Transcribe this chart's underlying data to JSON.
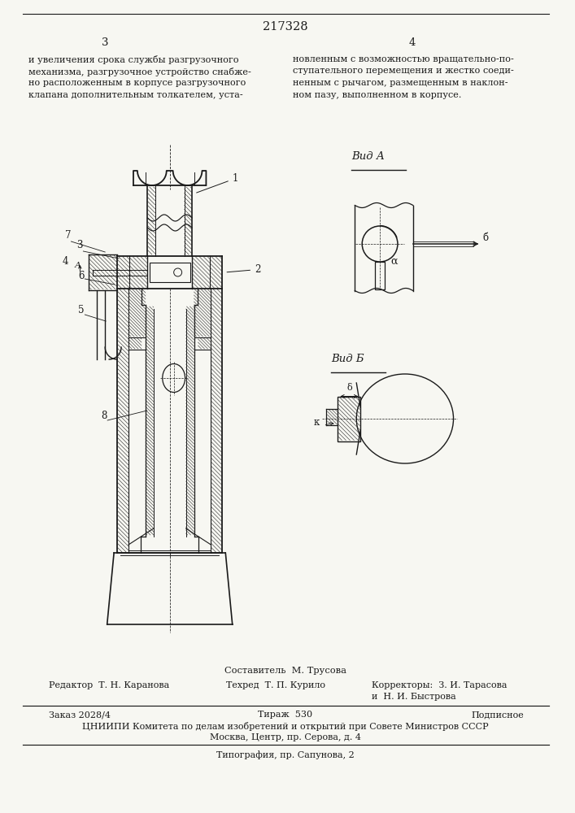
{
  "page_number": "217328",
  "col_left": "3",
  "col_right": "4",
  "text_left": "и увеличения срока службы разгрузочного\nмеханизма, разгрузочное устройство снабже-\nно расположенным в корпусе разгрузочного\nклапана дополнительным толкателем, уста-",
  "text_right": "новленным с возможностью вращательно-по-\nступательного перемещения и жестко соеди-\nненным с рычагом, размещенным в наклон-\nном пазу, выполненном в корпусе.",
  "footer_line1_left": "Заказ 2028/4",
  "footer_line1_mid": "Тираж  530",
  "footer_line1_right": "Подписное",
  "footer_line2": "ЦНИИПИ Комитета по делам изобретений и открытий при Совете Министров СССР",
  "footer_line3": "Москва, Центр, пр. Серова, д. 4",
  "footer_line4": "Типография, пр. Сапунова, 2",
  "составитель_label": "Составитель  М. Трусова",
  "редактор_str": "Редактор  Т. Н. Каранова",
  "техред_str": "Техред  Т. П. Курило",
  "корректор_str": "Корректоры:  З. И. Тарасова",
  "корректор2_str": "и  Н. И. Быстрова",
  "bg_color": "#f7f7f2",
  "line_color": "#1a1a1a",
  "text_color": "#1a1a1a",
  "hatch_color": "#2a2a2a"
}
